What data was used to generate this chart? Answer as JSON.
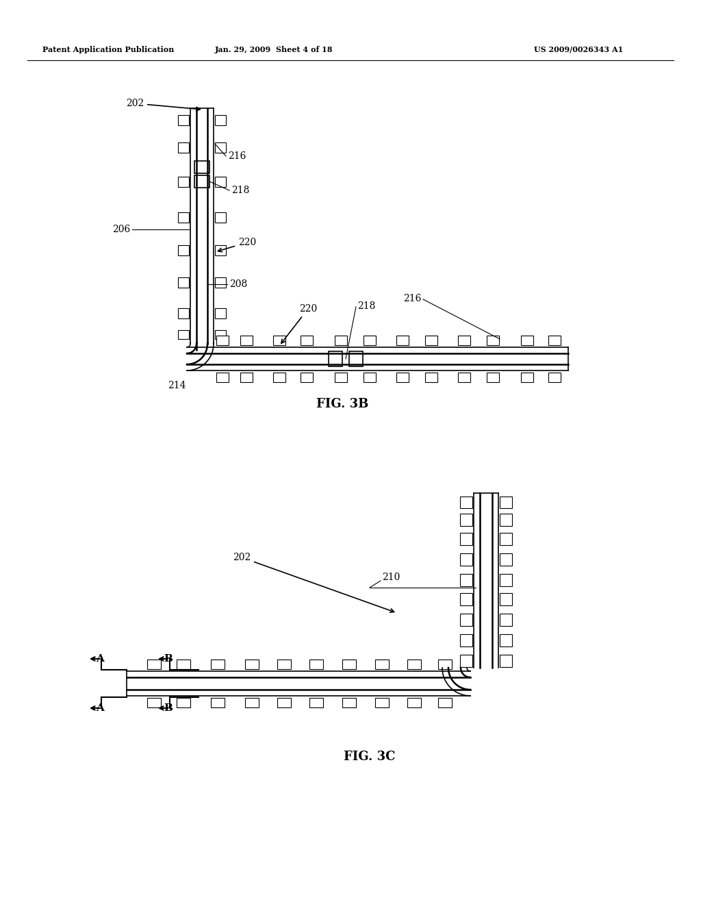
{
  "bg_color": "#ffffff",
  "header_left": "Patent Application Publication",
  "header_center": "Jan. 29, 2009  Sheet 4 of 18",
  "header_right": "US 2009/0026343 A1",
  "fig3b_label": "FIG. 3B",
  "fig3c_label": "FIG. 3C"
}
